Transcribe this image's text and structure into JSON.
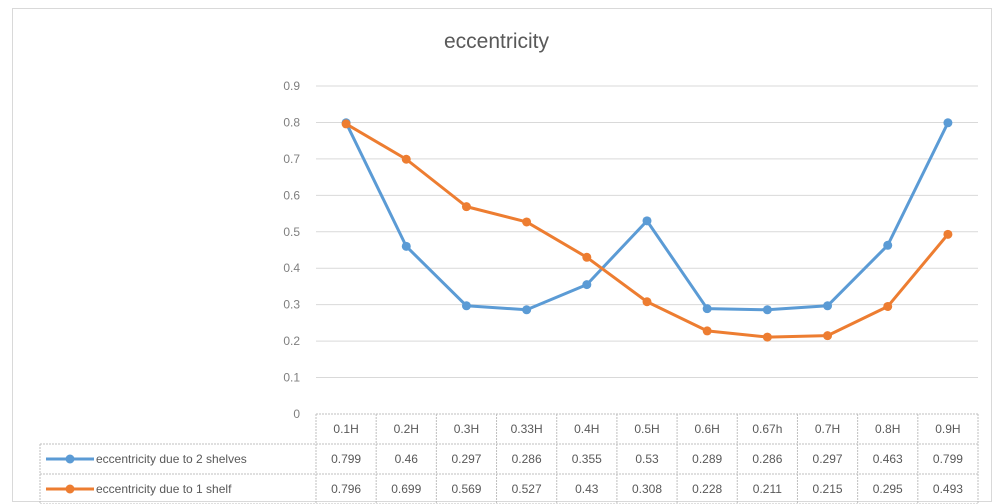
{
  "chart_data": {
    "type": "line",
    "title": "eccentricity",
    "categories": [
      "0.1H",
      "0.2H",
      "0.3H",
      "0.33H",
      "0.4H",
      "0.5H",
      "0.6H",
      "0.67h",
      "0.7H",
      "0.8H",
      "0.9H"
    ],
    "series": [
      {
        "name": "eccentricity due to 2 shelves",
        "color": "#5b9bd5",
        "values": [
          0.799,
          0.46,
          0.297,
          0.286,
          0.355,
          0.53,
          0.289,
          0.286,
          0.297,
          0.463,
          0.799
        ]
      },
      {
        "name": "eccentricity due to 1 shelf",
        "color": "#ed7d31",
        "values": [
          0.796,
          0.699,
          0.569,
          0.527,
          0.43,
          0.308,
          0.228,
          0.211,
          0.215,
          0.295,
          0.493
        ]
      }
    ],
    "yticks": [
      "0",
      "0.1",
      "0.2",
      "0.3",
      "0.4",
      "0.5",
      "0.6",
      "0.7",
      "0.8",
      "0.9"
    ],
    "ylim": [
      0,
      0.9
    ],
    "grid": true,
    "legend": "data-table",
    "data_table": true
  }
}
